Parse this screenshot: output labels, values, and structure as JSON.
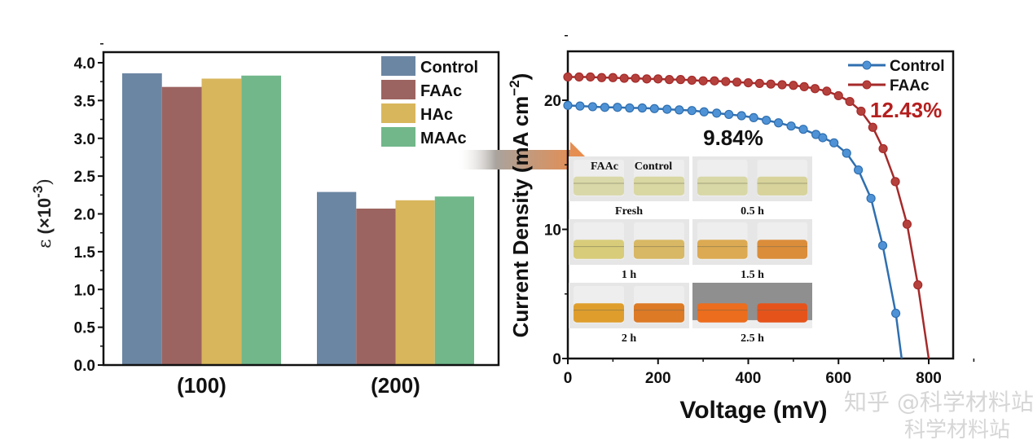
{
  "chart_data": [
    {
      "type": "bar",
      "categories": [
        "(100)",
        "(200)"
      ],
      "series": [
        {
          "name": "Control",
          "color": "#6b86a3",
          "values": [
            3.86,
            2.29
          ]
        },
        {
          "name": "FAAc",
          "color": "#9c6460",
          "values": [
            3.68,
            2.07
          ]
        },
        {
          "name": "HAc",
          "color": "#d8b65c",
          "values": [
            3.79,
            2.18
          ]
        },
        {
          "name": "MAAc",
          "color": "#71b78a",
          "values": [
            3.83,
            2.23
          ]
        }
      ],
      "ylabel": "ε (×10⁻³)",
      "ylabel_main": "ε",
      "ylabel_unit": "(×10",
      "ylabel_exp": "-3",
      "ylabel_close": ")",
      "ylim": [
        0,
        4.1
      ],
      "yticks": [
        "0.0",
        "0.5",
        "1.0",
        "1.5",
        "2.0",
        "2.5",
        "3.0",
        "3.5",
        "4.0"
      ],
      "legend": "top-right",
      "grid": false
    },
    {
      "type": "line",
      "xlabel": "Voltage (mV)",
      "ylabel": "Current Density (mA cm⁻²)",
      "ylabel_main": "Current Density (mA cm",
      "ylabel_exp": "−2",
      "ylabel_close": ")",
      "xlim": [
        0,
        860
      ],
      "ylim": [
        0,
        23.8
      ],
      "xticks": [
        "0",
        "200",
        "400",
        "600",
        "800"
      ],
      "yticks": [
        "0",
        "10",
        "20"
      ],
      "legend": "top-right",
      "grid": false,
      "series": [
        {
          "name": "Control",
          "color": "#2f6fb0",
          "marker_color": "#4f93d6",
          "points": [
            [
              0,
              19.6
            ],
            [
              27,
              19.55
            ],
            [
              55,
              19.5
            ],
            [
              82,
              19.45
            ],
            [
              110,
              19.45
            ],
            [
              137,
              19.4
            ],
            [
              165,
              19.4
            ],
            [
              192,
              19.35
            ],
            [
              220,
              19.3
            ],
            [
              247,
              19.25
            ],
            [
              275,
              19.2
            ],
            [
              302,
              19.1
            ],
            [
              330,
              19.0
            ],
            [
              357,
              18.9
            ],
            [
              385,
              18.8
            ],
            [
              412,
              18.65
            ],
            [
              440,
              18.45
            ],
            [
              467,
              18.25
            ],
            [
              495,
              18.0
            ],
            [
              522,
              17.75
            ],
            [
              550,
              17.35
            ],
            [
              565,
              17.1
            ],
            [
              590,
              16.7
            ],
            [
              618,
              15.9
            ],
            [
              644,
              14.6
            ],
            [
              672,
              12.4
            ],
            [
              698,
              8.75
            ],
            [
              727,
              3.5
            ],
            [
              740,
              0
            ]
          ]
        },
        {
          "name": "FAAc",
          "color": "#a52a2a",
          "marker_color": "#b5413c",
          "points": [
            [
              0,
              21.8
            ],
            [
              25,
              21.8
            ],
            [
              50,
              21.8
            ],
            [
              75,
              21.75
            ],
            [
              100,
              21.75
            ],
            [
              125,
              21.7
            ],
            [
              150,
              21.7
            ],
            [
              175,
              21.65
            ],
            [
              200,
              21.65
            ],
            [
              225,
              21.6
            ],
            [
              250,
              21.6
            ],
            [
              275,
              21.55
            ],
            [
              300,
              21.5
            ],
            [
              325,
              21.5
            ],
            [
              350,
              21.45
            ],
            [
              375,
              21.4
            ],
            [
              400,
              21.35
            ],
            [
              425,
              21.3
            ],
            [
              450,
              21.25
            ],
            [
              475,
              21.2
            ],
            [
              500,
              21.15
            ],
            [
              524,
              21.05
            ],
            [
              548,
              20.9
            ],
            [
              574,
              20.7
            ],
            [
              600,
              20.35
            ],
            [
              625,
              19.9
            ],
            [
              650,
              19.15
            ],
            [
              676,
              17.9
            ],
            [
              699,
              16.25
            ],
            [
              726,
              13.7
            ],
            [
              752,
              10.4
            ],
            [
              776,
              5.7
            ],
            [
              800,
              0
            ]
          ]
        }
      ],
      "annotations": [
        {
          "text": "9.84%",
          "color": "#111111"
        },
        {
          "text": "12.43%",
          "color": "#b51f1f"
        }
      ],
      "inset_photos": {
        "header_labels": [
          "FAAc",
          "Control"
        ],
        "panels": [
          {
            "label": "Fresh",
            "liquid": [
              "#d9d8a8",
              "#d9d7a2"
            ]
          },
          {
            "label": "0.5 h",
            "liquid": [
              "#d8d7a6",
              "#d7d39b"
            ]
          },
          {
            "label": "1 h",
            "liquid": [
              "#d8cc7a",
              "#d8b864"
            ]
          },
          {
            "label": "1.5 h",
            "liquid": [
              "#dcaa52",
              "#db8d3a"
            ]
          },
          {
            "label": "2 h",
            "liquid": [
              "#df9e2c",
              "#dd7a25"
            ]
          },
          {
            "label": "2.5 h",
            "liquid": [
              "#ec6d1d",
              "#e5531b"
            ]
          }
        ]
      }
    }
  ],
  "watermark": {
    "line1": "知乎 @科学材料站",
    "line2": "科学材料站"
  }
}
